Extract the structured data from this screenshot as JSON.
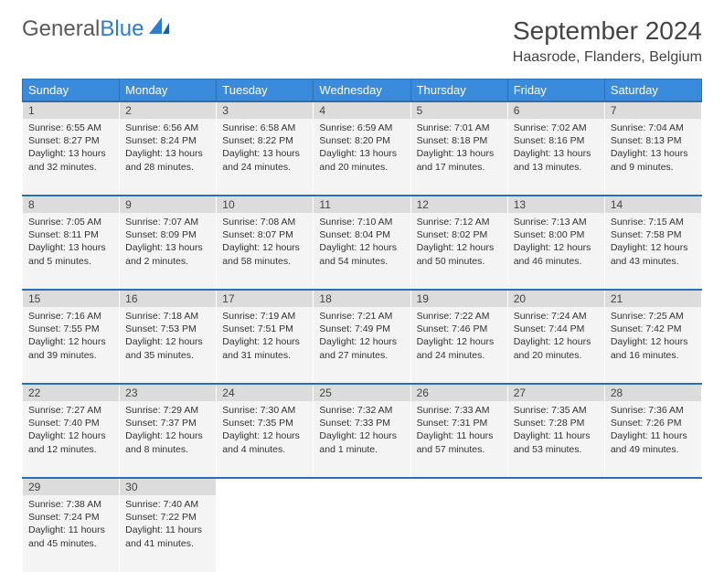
{
  "logo": {
    "part1": "General",
    "part2": "Blue"
  },
  "title": "September 2024",
  "location": "Haasrode, Flanders, Belgium",
  "colors": {
    "header_bg": "#3b8bdc",
    "header_border": "#2b6fb5",
    "daynum_bg": "#dcdcdc",
    "cell_bg": "#f4f4f4",
    "row_border": "#2b6fb5",
    "logo_gray": "#5a5a5a",
    "logo_blue": "#2b7cd3"
  },
  "daysOfWeek": [
    "Sunday",
    "Monday",
    "Tuesday",
    "Wednesday",
    "Thursday",
    "Friday",
    "Saturday"
  ],
  "weeks": [
    [
      {
        "n": "1",
        "sr": "Sunrise: 6:55 AM",
        "ss": "Sunset: 8:27 PM",
        "d1": "Daylight: 13 hours",
        "d2": "and 32 minutes."
      },
      {
        "n": "2",
        "sr": "Sunrise: 6:56 AM",
        "ss": "Sunset: 8:24 PM",
        "d1": "Daylight: 13 hours",
        "d2": "and 28 minutes."
      },
      {
        "n": "3",
        "sr": "Sunrise: 6:58 AM",
        "ss": "Sunset: 8:22 PM",
        "d1": "Daylight: 13 hours",
        "d2": "and 24 minutes."
      },
      {
        "n": "4",
        "sr": "Sunrise: 6:59 AM",
        "ss": "Sunset: 8:20 PM",
        "d1": "Daylight: 13 hours",
        "d2": "and 20 minutes."
      },
      {
        "n": "5",
        "sr": "Sunrise: 7:01 AM",
        "ss": "Sunset: 8:18 PM",
        "d1": "Daylight: 13 hours",
        "d2": "and 17 minutes."
      },
      {
        "n": "6",
        "sr": "Sunrise: 7:02 AM",
        "ss": "Sunset: 8:16 PM",
        "d1": "Daylight: 13 hours",
        "d2": "and 13 minutes."
      },
      {
        "n": "7",
        "sr": "Sunrise: 7:04 AM",
        "ss": "Sunset: 8:13 PM",
        "d1": "Daylight: 13 hours",
        "d2": "and 9 minutes."
      }
    ],
    [
      {
        "n": "8",
        "sr": "Sunrise: 7:05 AM",
        "ss": "Sunset: 8:11 PM",
        "d1": "Daylight: 13 hours",
        "d2": "and 5 minutes."
      },
      {
        "n": "9",
        "sr": "Sunrise: 7:07 AM",
        "ss": "Sunset: 8:09 PM",
        "d1": "Daylight: 13 hours",
        "d2": "and 2 minutes."
      },
      {
        "n": "10",
        "sr": "Sunrise: 7:08 AM",
        "ss": "Sunset: 8:07 PM",
        "d1": "Daylight: 12 hours",
        "d2": "and 58 minutes."
      },
      {
        "n": "11",
        "sr": "Sunrise: 7:10 AM",
        "ss": "Sunset: 8:04 PM",
        "d1": "Daylight: 12 hours",
        "d2": "and 54 minutes."
      },
      {
        "n": "12",
        "sr": "Sunrise: 7:12 AM",
        "ss": "Sunset: 8:02 PM",
        "d1": "Daylight: 12 hours",
        "d2": "and 50 minutes."
      },
      {
        "n": "13",
        "sr": "Sunrise: 7:13 AM",
        "ss": "Sunset: 8:00 PM",
        "d1": "Daylight: 12 hours",
        "d2": "and 46 minutes."
      },
      {
        "n": "14",
        "sr": "Sunrise: 7:15 AM",
        "ss": "Sunset: 7:58 PM",
        "d1": "Daylight: 12 hours",
        "d2": "and 43 minutes."
      }
    ],
    [
      {
        "n": "15",
        "sr": "Sunrise: 7:16 AM",
        "ss": "Sunset: 7:55 PM",
        "d1": "Daylight: 12 hours",
        "d2": "and 39 minutes."
      },
      {
        "n": "16",
        "sr": "Sunrise: 7:18 AM",
        "ss": "Sunset: 7:53 PM",
        "d1": "Daylight: 12 hours",
        "d2": "and 35 minutes."
      },
      {
        "n": "17",
        "sr": "Sunrise: 7:19 AM",
        "ss": "Sunset: 7:51 PM",
        "d1": "Daylight: 12 hours",
        "d2": "and 31 minutes."
      },
      {
        "n": "18",
        "sr": "Sunrise: 7:21 AM",
        "ss": "Sunset: 7:49 PM",
        "d1": "Daylight: 12 hours",
        "d2": "and 27 minutes."
      },
      {
        "n": "19",
        "sr": "Sunrise: 7:22 AM",
        "ss": "Sunset: 7:46 PM",
        "d1": "Daylight: 12 hours",
        "d2": "and 24 minutes."
      },
      {
        "n": "20",
        "sr": "Sunrise: 7:24 AM",
        "ss": "Sunset: 7:44 PM",
        "d1": "Daylight: 12 hours",
        "d2": "and 20 minutes."
      },
      {
        "n": "21",
        "sr": "Sunrise: 7:25 AM",
        "ss": "Sunset: 7:42 PM",
        "d1": "Daylight: 12 hours",
        "d2": "and 16 minutes."
      }
    ],
    [
      {
        "n": "22",
        "sr": "Sunrise: 7:27 AM",
        "ss": "Sunset: 7:40 PM",
        "d1": "Daylight: 12 hours",
        "d2": "and 12 minutes."
      },
      {
        "n": "23",
        "sr": "Sunrise: 7:29 AM",
        "ss": "Sunset: 7:37 PM",
        "d1": "Daylight: 12 hours",
        "d2": "and 8 minutes."
      },
      {
        "n": "24",
        "sr": "Sunrise: 7:30 AM",
        "ss": "Sunset: 7:35 PM",
        "d1": "Daylight: 12 hours",
        "d2": "and 4 minutes."
      },
      {
        "n": "25",
        "sr": "Sunrise: 7:32 AM",
        "ss": "Sunset: 7:33 PM",
        "d1": "Daylight: 12 hours",
        "d2": "and 1 minute."
      },
      {
        "n": "26",
        "sr": "Sunrise: 7:33 AM",
        "ss": "Sunset: 7:31 PM",
        "d1": "Daylight: 11 hours",
        "d2": "and 57 minutes."
      },
      {
        "n": "27",
        "sr": "Sunrise: 7:35 AM",
        "ss": "Sunset: 7:28 PM",
        "d1": "Daylight: 11 hours",
        "d2": "and 53 minutes."
      },
      {
        "n": "28",
        "sr": "Sunrise: 7:36 AM",
        "ss": "Sunset: 7:26 PM",
        "d1": "Daylight: 11 hours",
        "d2": "and 49 minutes."
      }
    ],
    [
      {
        "n": "29",
        "sr": "Sunrise: 7:38 AM",
        "ss": "Sunset: 7:24 PM",
        "d1": "Daylight: 11 hours",
        "d2": "and 45 minutes."
      },
      {
        "n": "30",
        "sr": "Sunrise: 7:40 AM",
        "ss": "Sunset: 7:22 PM",
        "d1": "Daylight: 11 hours",
        "d2": "and 41 minutes."
      },
      null,
      null,
      null,
      null,
      null
    ]
  ]
}
